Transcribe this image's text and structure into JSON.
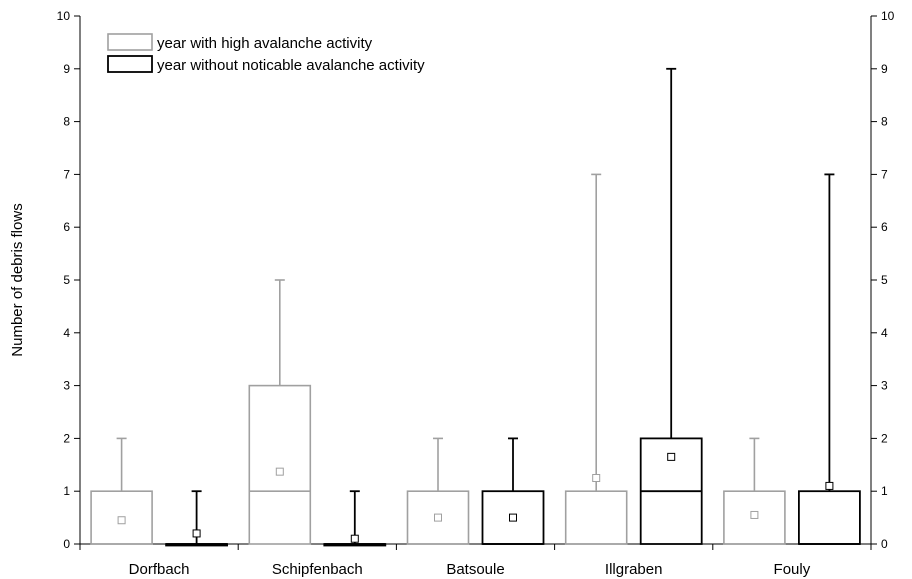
{
  "chart_data": {
    "type": "box",
    "ylabel": "Number of debris flows",
    "ylim": [
      0,
      10
    ],
    "yticks": [
      "0",
      "1",
      "2",
      "3",
      "4",
      "5",
      "6",
      "7",
      "8",
      "9",
      "10"
    ],
    "categories": [
      "Dorfbach",
      "Schipfenbach",
      "Batsoule",
      "Illgraben",
      "Fouly"
    ],
    "legend_position": "top-left",
    "grid": false,
    "series": [
      {
        "name": "year with high avalanche activity",
        "color": "#a0a0a0",
        "boxes": [
          {
            "min": 0,
            "q1": 0,
            "median": 0,
            "q3": 1,
            "max": 2,
            "mean": 0.45
          },
          {
            "min": 0,
            "q1": 0,
            "median": 1,
            "q3": 3,
            "max": 5,
            "mean": 1.37
          },
          {
            "min": 0,
            "q1": 0,
            "median": 0,
            "q3": 1,
            "max": 2,
            "mean": 0.5
          },
          {
            "min": 0,
            "q1": 0,
            "median": 0,
            "q3": 1,
            "max": 7,
            "mean": 1.25
          },
          {
            "min": 0,
            "q1": 0,
            "median": 0,
            "q3": 1,
            "max": 2,
            "mean": 0.55
          }
        ]
      },
      {
        "name": "year without noticable avalanche activity",
        "color": "#000000",
        "boxes": [
          {
            "min": 0,
            "q1": 0,
            "median": 0,
            "q3": 0,
            "max": 1,
            "mean": 0.2
          },
          {
            "min": 0,
            "q1": 0,
            "median": 0,
            "q3": 0,
            "max": 1,
            "mean": 0.1
          },
          {
            "min": 0,
            "q1": 0,
            "median": 0,
            "q3": 1,
            "max": 2,
            "mean": 0.5
          },
          {
            "min": 0,
            "q1": 0,
            "median": 1,
            "q3": 2,
            "max": 9,
            "mean": 1.65
          },
          {
            "min": 0,
            "q1": 0,
            "median": 0,
            "q3": 1,
            "max": 7,
            "mean": 1.1
          }
        ]
      }
    ]
  }
}
